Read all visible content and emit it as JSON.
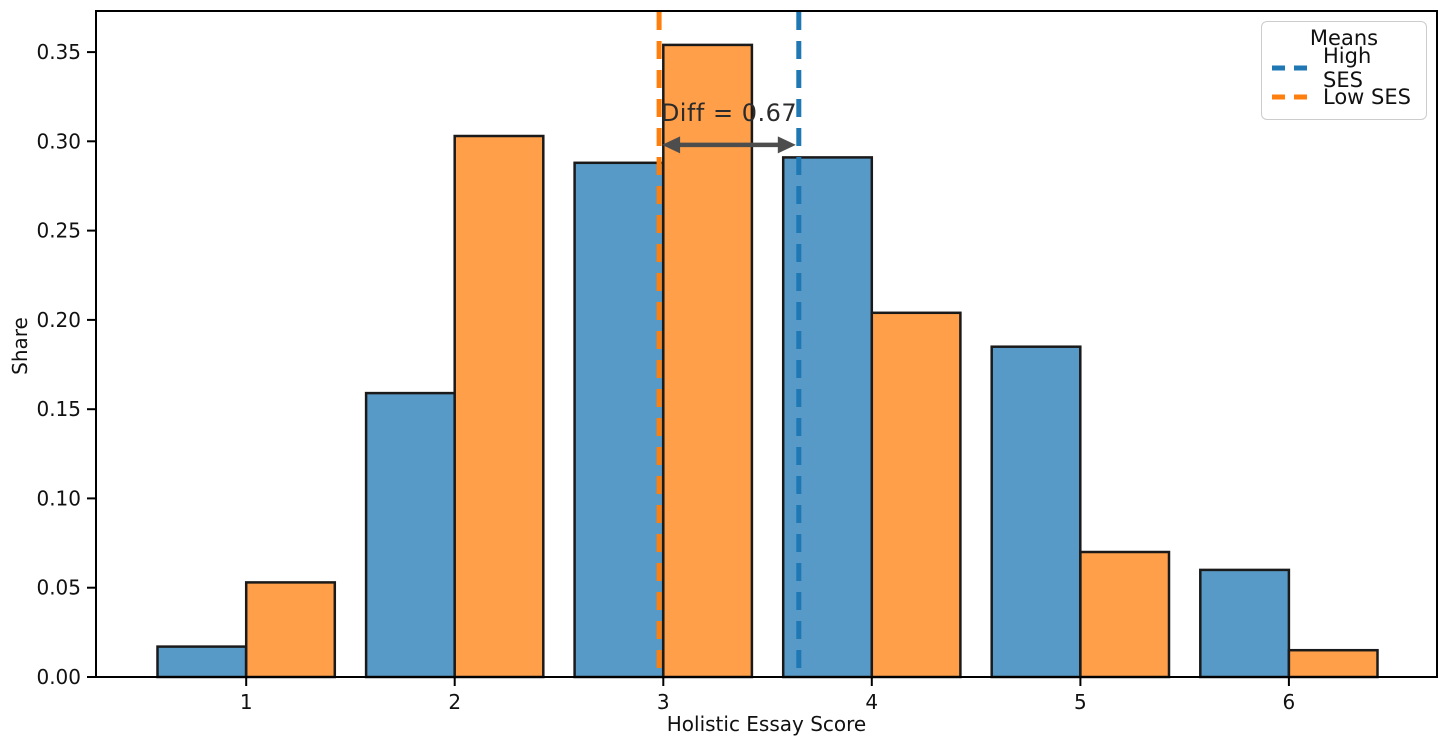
{
  "figure": {
    "background": "#ffffff"
  },
  "chart_data": {
    "type": "bar",
    "title": "",
    "xlabel": "Holistic Essay Score",
    "ylabel": "Share",
    "categories": [
      1,
      2,
      3,
      4,
      5,
      6
    ],
    "series": [
      {
        "name": "High SES",
        "values": [
          0.017,
          0.159,
          0.288,
          0.291,
          0.185,
          0.06
        ],
        "bar_color": "#5799c7",
        "mean": 3.65,
        "mean_line_color": "#1f77b4"
      },
      {
        "name": "Low SES",
        "values": [
          0.053,
          0.303,
          0.354,
          0.204,
          0.07,
          0.015
        ],
        "bar_color": "#ff9f4a",
        "mean": 2.98,
        "mean_line_color": "#ff7f0e"
      }
    ],
    "bar_width": 0.425,
    "bar_edge_color": "#1a1a1a",
    "xlim": [
      0.28,
      6.71
    ],
    "ylim": [
      0,
      0.373
    ],
    "grid": false,
    "xticks": {
      "values": [
        1,
        2,
        3,
        4,
        5,
        6
      ],
      "labels": [
        "1",
        "2",
        "3",
        "4",
        "5",
        "6"
      ]
    },
    "yticks": {
      "values": [
        0.0,
        0.05,
        0.1,
        0.15,
        0.2,
        0.25,
        0.3,
        0.35
      ],
      "labels": [
        "0.00",
        "0.05",
        "0.10",
        "0.15",
        "0.20",
        "0.25",
        "0.30",
        "0.35"
      ]
    },
    "legend": {
      "title": "Means",
      "position": "upper right",
      "entries": [
        {
          "label": "High SES",
          "color": "#1f77b4"
        },
        {
          "label": "Low SES",
          "color": "#ff7f0e"
        }
      ]
    },
    "annotation": {
      "label": "Diff = 0.67",
      "arrow_from_x": 2.98,
      "arrow_to_x": 3.65,
      "arrow_y": 0.298,
      "text_top_y": 0.324,
      "arrow_color": "#4d4d4d",
      "text_color": "#2b2b2b"
    }
  }
}
